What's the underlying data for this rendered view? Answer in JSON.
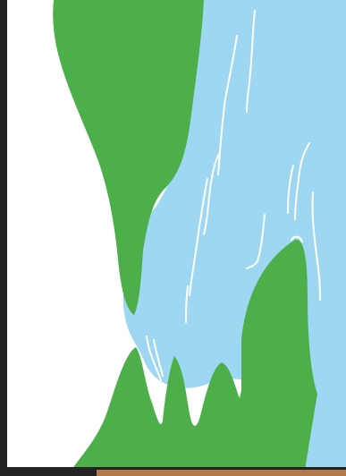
{
  "scene": {
    "description_visible_text": "",
    "colors": {
      "background": "#ffffff",
      "frame": "#222222",
      "water": "#9dd7f1",
      "foliage": "#4caf4a",
      "streaks": "#ffffff",
      "ground": "#b07a4a"
    },
    "elements": [
      "waterfall",
      "left-cliff-foliage",
      "right-cliff-foliage",
      "bottom-foliage",
      "water-streaks",
      "ground-strip"
    ]
  }
}
